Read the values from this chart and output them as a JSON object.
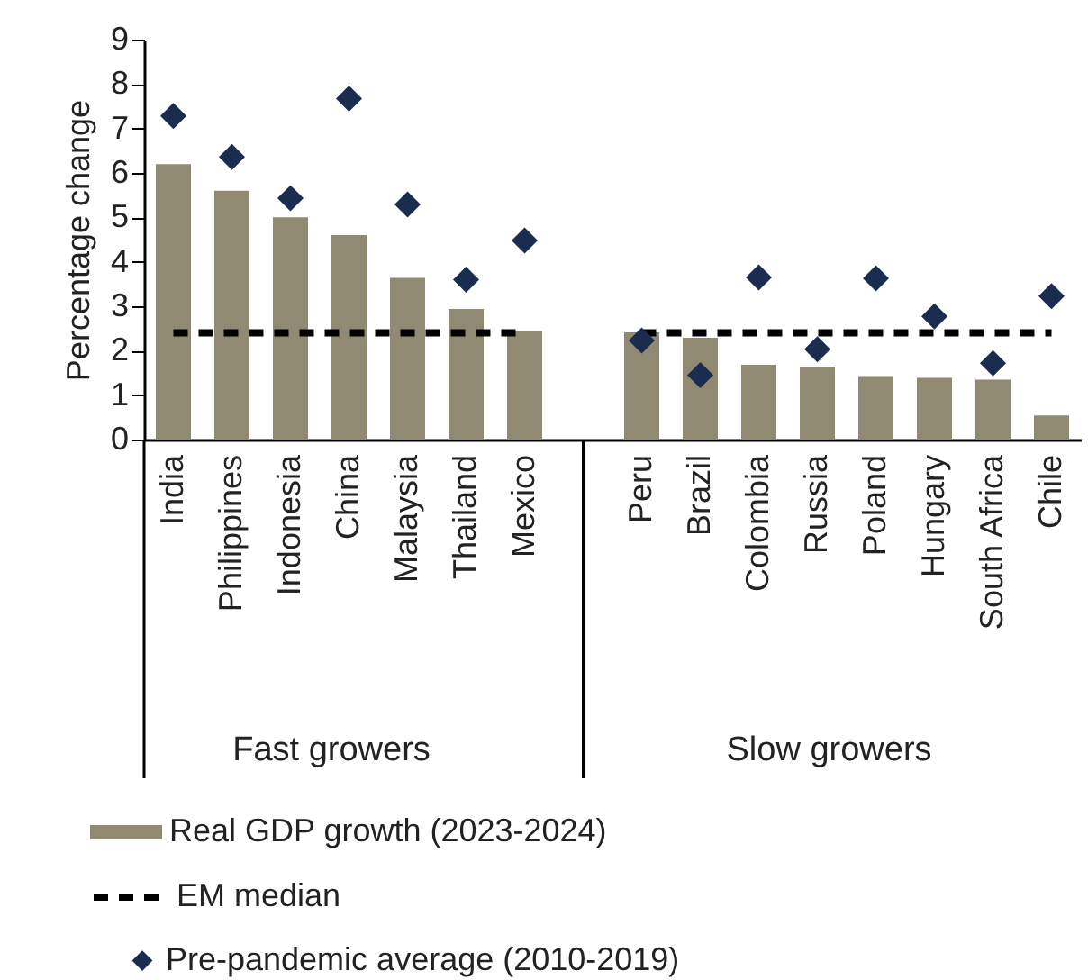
{
  "chart_data": {
    "type": "bar",
    "ylabel": "Percentage change",
    "categories": [
      "India",
      "Philippines",
      "Indonesia",
      "China",
      "Malaysia",
      "Thailand",
      "Mexico",
      null,
      "Peru",
      "Brazil",
      "Colombia",
      "Russia",
      "Poland",
      "Hungary",
      "South Africa",
      "Chile"
    ],
    "ylim": [
      0,
      9
    ],
    "yticks": [
      0,
      1,
      2,
      3,
      4,
      5,
      6,
      7,
      8,
      9
    ],
    "legend": "bottom",
    "annotations": [
      "Fast growers",
      "Slow growers"
    ],
    "series": [
      {
        "name": "Real GDP growth (2023-2024)",
        "color": "#918a73",
        "values": [
          6.2,
          5.6,
          5.0,
          4.6,
          3.64,
          2.94,
          2.44,
          null,
          2.41,
          2.29,
          1.68,
          1.64,
          1.43,
          1.39,
          1.35,
          0.54
        ]
      },
      {
        "name": "EM median",
        "type": "line",
        "color": "#000000",
        "line_style": "dashed",
        "values": [
          2.4,
          2.4,
          2.4,
          2.4,
          2.4,
          2.4,
          2.4,
          null,
          2.4,
          2.4,
          2.4,
          2.4,
          2.4,
          2.4,
          2.4,
          2.4
        ]
      },
      {
        "name": "Pre-pandemic average (2010-2019)",
        "type": "scatter",
        "color": "#1b2d4f",
        "marker": "diamond",
        "values": [
          7.28,
          6.36,
          5.43,
          7.67,
          5.29,
          3.6,
          4.48,
          null,
          2.23,
          1.45,
          3.65,
          2.03,
          3.63,
          2.77,
          1.72,
          3.23
        ]
      }
    ]
  }
}
